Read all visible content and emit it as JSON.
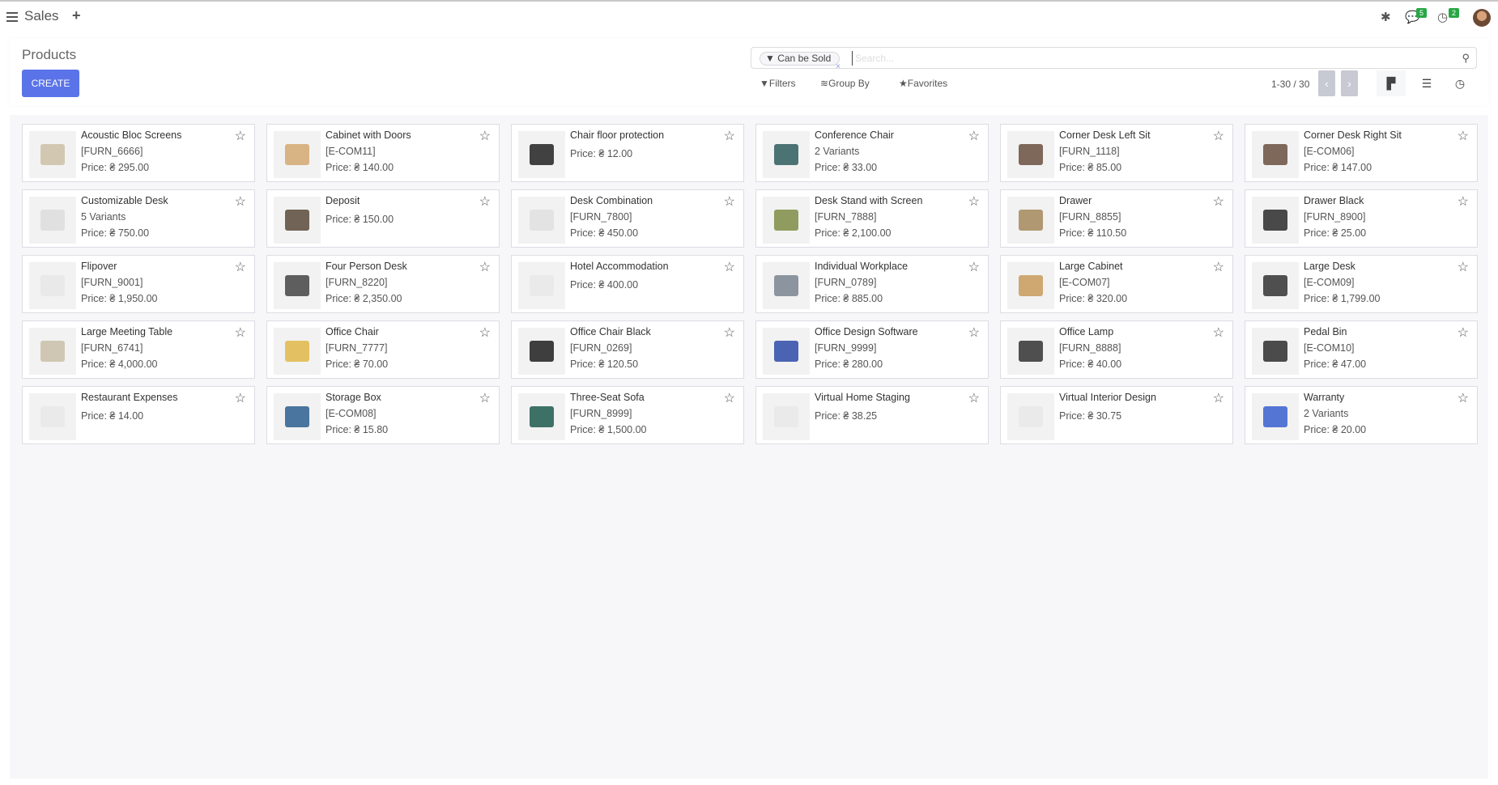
{
  "topbar": {
    "app": "Sales",
    "new_label": "+",
    "messages_badge": "5",
    "activities_badge": "2"
  },
  "control": {
    "title": "Products",
    "create": "CREATE",
    "facet": "Can be Sold",
    "facet_remove": "×",
    "search_placeholder": "Search...",
    "filters": "Filters",
    "group_by": "Group By",
    "favorites": "Favorites",
    "pager": "1-30 / 30",
    "prev": "‹",
    "next": "›"
  },
  "products": [
    {
      "name": "Acoustic Bloc Screens",
      "line2": "[FURN_6666]",
      "price": "Price: ₴ 295.00",
      "tone": "#cdbfa6"
    },
    {
      "name": "Cabinet with Doors",
      "line2": "[E-COM11]",
      "price": "Price: ₴ 140.00",
      "tone": "#d4a870"
    },
    {
      "name": "Chair floor protection",
      "line2": "",
      "price": "Price: ₴ 12.00",
      "tone": "#222222"
    },
    {
      "name": "Conference Chair",
      "line2": "2 Variants",
      "price": "Price: ₴ 33.00",
      "tone": "#2f5d5e"
    },
    {
      "name": "Corner Desk Left Sit",
      "line2": "[FURN_1118]",
      "price": "Price: ₴ 85.00",
      "tone": "#6a5040"
    },
    {
      "name": "Corner Desk Right Sit",
      "line2": "[E-COM06]",
      "price": "Price: ₴ 147.00",
      "tone": "#6a5040"
    },
    {
      "name": "Customizable Desk",
      "line2": "5 Variants",
      "price": "Price: ₴ 750.00",
      "tone": "#dddddd"
    },
    {
      "name": "Deposit",
      "line2": "",
      "price": "Price: ₴ 150.00",
      "tone": "#5a4a3a"
    },
    {
      "name": "Desk Combination",
      "line2": "[FURN_7800]",
      "price": "Price: ₴ 450.00",
      "tone": "#e0e0e0"
    },
    {
      "name": "Desk Stand with Screen",
      "line2": "[FURN_7888]",
      "price": "Price: ₴ 2,100.00",
      "tone": "#7f8d45"
    },
    {
      "name": "Drawer",
      "line2": "[FURN_8855]",
      "price": "Price: ₴ 110.50",
      "tone": "#a58a5c"
    },
    {
      "name": "Drawer Black",
      "line2": "[FURN_8900]",
      "price": "Price: ₴ 25.00",
      "tone": "#2b2b2b"
    },
    {
      "name": "Flipover",
      "line2": "[FURN_9001]",
      "price": "Price: ₴ 1,950.00",
      "tone": "#e8e8e8"
    },
    {
      "name": "Four Person Desk",
      "line2": "[FURN_8220]",
      "price": "Price: ₴ 2,350.00",
      "tone": "#444444"
    },
    {
      "name": "Hotel Accommodation",
      "line2": "",
      "price": "Price: ₴ 400.00",
      "tone": "#e9e9e9"
    },
    {
      "name": "Individual Workplace",
      "line2": "[FURN_0789]",
      "price": "Price: ₴ 885.00",
      "tone": "#7a8590"
    },
    {
      "name": "Large Cabinet",
      "line2": "[E-COM07]",
      "price": "Price: ₴ 320.00",
      "tone": "#c99a5b"
    },
    {
      "name": "Large Desk",
      "line2": "[E-COM09]",
      "price": "Price: ₴ 1,799.00",
      "tone": "#333333"
    },
    {
      "name": "Large Meeting Table",
      "line2": "[FURN_6741]",
      "price": "Price: ₴ 4,000.00",
      "tone": "#c9bfa8"
    },
    {
      "name": "Office Chair",
      "line2": "[FURN_7777]",
      "price": "Price: ₴ 70.00",
      "tone": "#e0b84a"
    },
    {
      "name": "Office Chair Black",
      "line2": "[FURN_0269]",
      "price": "Price: ₴ 120.50",
      "tone": "#1e1e1e"
    },
    {
      "name": "Office Design Software",
      "line2": "[FURN_9999]",
      "price": "Price: ₴ 280.00",
      "tone": "#2e4aa8"
    },
    {
      "name": "Office Lamp",
      "line2": "[FURN_8888]",
      "price": "Price: ₴ 40.00",
      "tone": "#333333"
    },
    {
      "name": "Pedal Bin",
      "line2": "[E-COM10]",
      "price": "Price: ₴ 47.00",
      "tone": "#2e2e2e"
    },
    {
      "name": "Restaurant Expenses",
      "line2": "",
      "price": "Price: ₴ 14.00",
      "tone": "#e9e9e9"
    },
    {
      "name": "Storage Box",
      "line2": "[E-COM08]",
      "price": "Price: ₴ 15.80",
      "tone": "#2d5f8f"
    },
    {
      "name": "Three-Seat Sofa",
      "line2": "[FURN_8999]",
      "price": "Price: ₴ 1,500.00",
      "tone": "#1f5a4e"
    },
    {
      "name": "Virtual Home Staging",
      "line2": "",
      "price": "Price: ₴ 38.25",
      "tone": "#e9e9e9"
    },
    {
      "name": "Virtual Interior Design",
      "line2": "",
      "price": "Price: ₴ 30.75",
      "tone": "#e9e9e9"
    },
    {
      "name": "Warranty",
      "line2": "2 Variants",
      "price": "Price: ₴ 20.00",
      "tone": "#3a5fd0"
    }
  ]
}
